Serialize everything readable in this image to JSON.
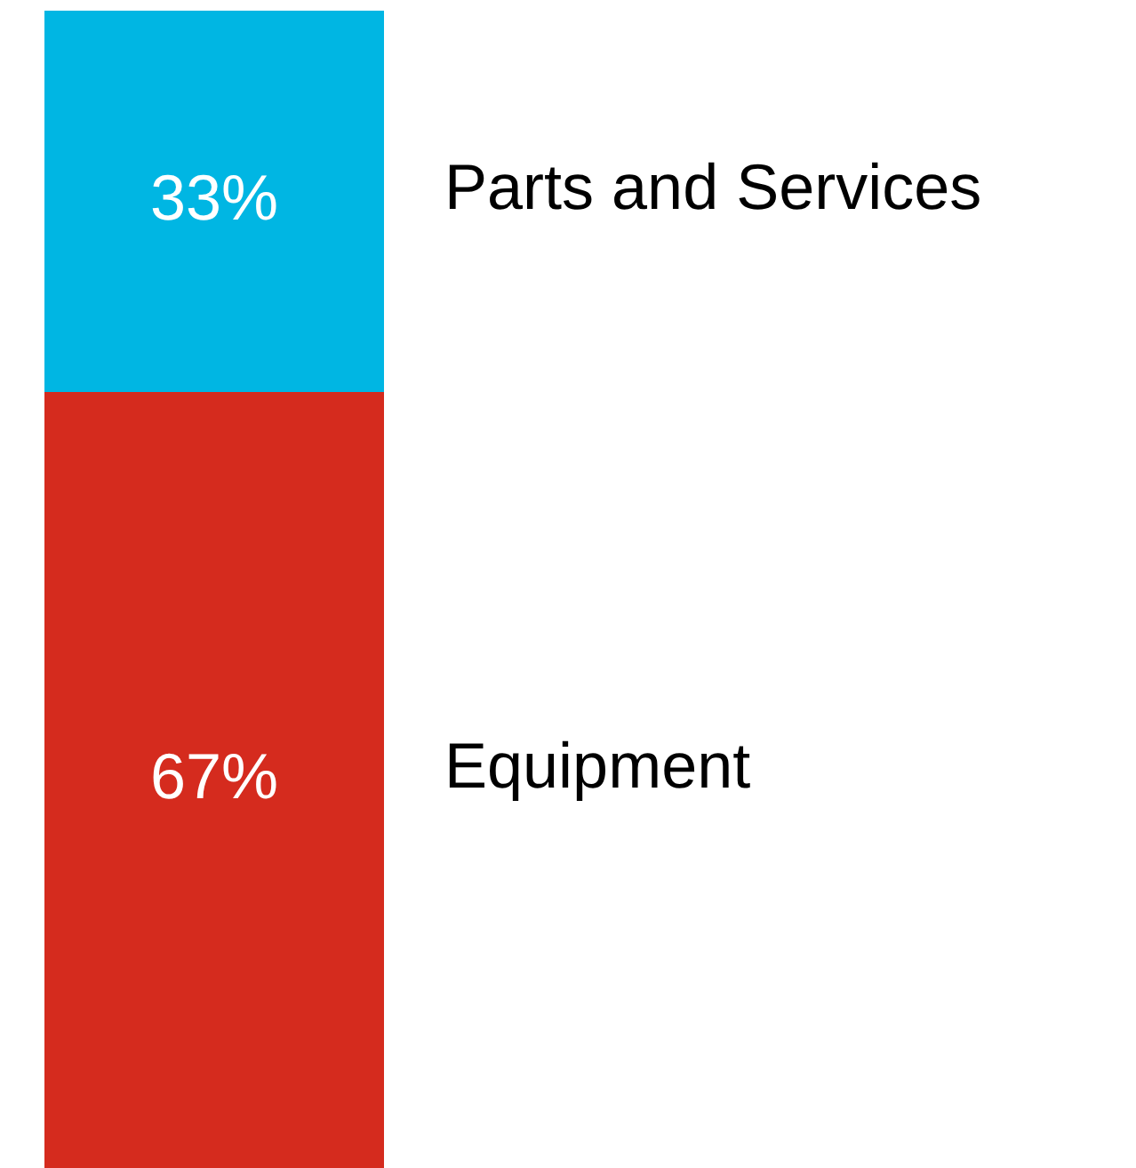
{
  "chart_data": {
    "type": "bar",
    "stacked": true,
    "categories": [
      null
    ],
    "legend": false,
    "series": [
      {
        "name": "Equipment",
        "color": "#d52b1e",
        "values": [
          67
        ],
        "value_labels": [
          "67%"
        ]
      },
      {
        "name": "Parts and Services",
        "color": "#00b6e3",
        "values": [
          33
        ],
        "value_labels": [
          "33%"
        ]
      }
    ]
  }
}
